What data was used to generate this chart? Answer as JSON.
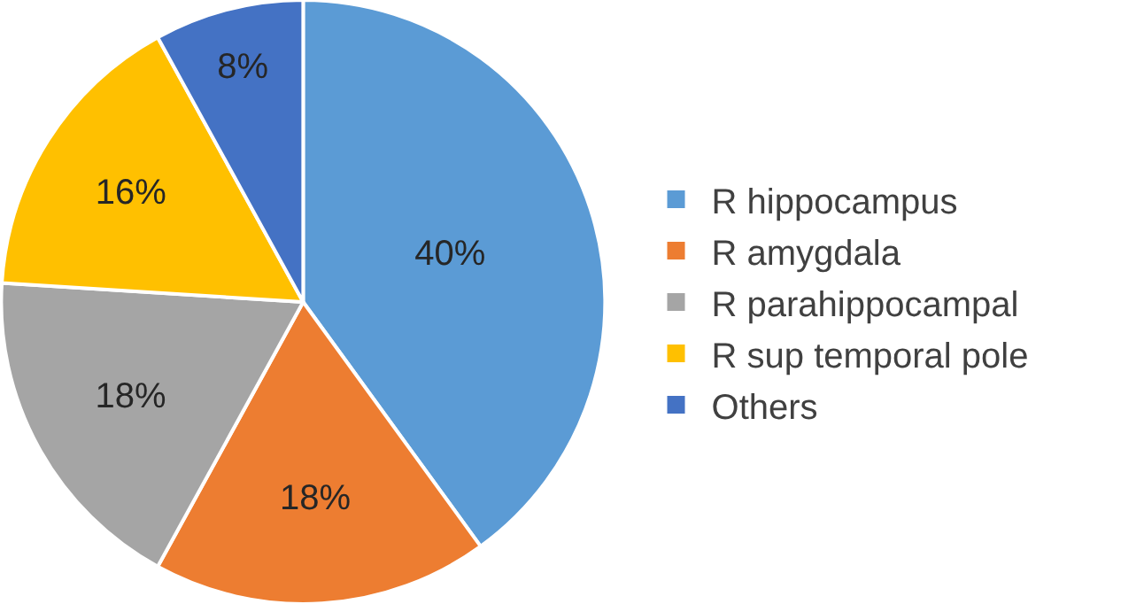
{
  "chart_data": {
    "type": "pie",
    "categories": [
      "R hippocampus",
      "R amygdala",
      "R parahippocampal",
      "R sup temporal pole",
      "Others"
    ],
    "values": [
      40,
      18,
      18,
      16,
      8
    ],
    "value_labels": [
      "40%",
      "18%",
      "18%",
      "16%",
      "8%"
    ],
    "colors": [
      "#5b9bd5",
      "#ed7d31",
      "#a5a5a5",
      "#ffc000",
      "#4472c4"
    ],
    "legend": "right"
  }
}
